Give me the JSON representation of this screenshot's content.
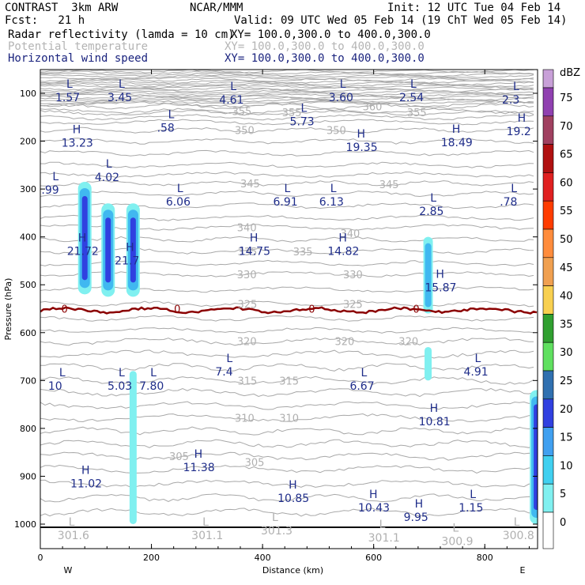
{
  "header": {
    "model": "CONTRAST  3km ARW",
    "center": "NCAR/MMM",
    "init": "Init: 12 UTC Tue 04 Feb 14",
    "fcst": "Fcst:   21 h",
    "valid": "Valid: 09 UTC Wed 05 Feb 14 (19 ChT Wed 05 Feb 14)",
    "field1_name": "Radar reflectivity (lamda = 10 cm)",
    "field1_xy": "XY= 100.0,300.0 to 400.0,300.0",
    "field2_name": "Potential temperature",
    "field2_xy": "XY= 100.0,300.0 to 400.0,300.0",
    "field3_name": "Horizontal wind speed",
    "field3_xy": "XY= 100.0,300.0 to 400.0,300.0"
  },
  "chart_data": {
    "type": "contour-cross-section",
    "xlabel": "Distance (km)",
    "ylabel": "Pressure (hPa)",
    "xlim": [
      0,
      895
    ],
    "ylim": [
      1050,
      55
    ],
    "x_ticks": [
      "0",
      "200",
      "400",
      "600",
      "800"
    ],
    "x_tick_values": [
      0,
      200,
      400,
      600,
      800
    ],
    "y_ticks": [
      "100",
      "200",
      "300",
      "400",
      "500",
      "600",
      "700",
      "800",
      "900",
      "1000"
    ],
    "y_tick_values": [
      100,
      200,
      300,
      400,
      500,
      600,
      700,
      800,
      900,
      1000
    ],
    "left_end_label": "W",
    "right_end_label": "E",
    "colorbar": {
      "units": "dBZ",
      "levels": [
        "75",
        "70",
        "65",
        "60",
        "55",
        "50",
        "45",
        "40",
        "35",
        "30",
        "25",
        "20",
        "15",
        "10",
        "5",
        "0"
      ],
      "colors": [
        "#c8a0d8",
        "#9040b0",
        "#a04060",
        "#b01010",
        "#e02020",
        "#ff3c00",
        "#ff8c3c",
        "#f0a050",
        "#f8d050",
        "#30a030",
        "#60e060",
        "#3070b0",
        "#3040e0",
        "#40a0f0",
        "#40d0f0",
        "#80f0f0",
        "#ffffff"
      ]
    },
    "theta_isentropes_K": [
      {
        "label": "360",
        "p": 127,
        "x": 580
      },
      {
        "label": "355",
        "p": 137,
        "x": 345
      },
      {
        "label": "355",
        "p": 140,
        "x": 435
      },
      {
        "label": "355",
        "p": 140,
        "x": 660
      },
      {
        "label": "350",
        "p": 177,
        "x": 350
      },
      {
        "label": "350",
        "p": 177,
        "x": 515
      },
      {
        "label": "345",
        "p": 288,
        "x": 360
      },
      {
        "label": "345",
        "p": 290,
        "x": 610
      },
      {
        "label": "340",
        "p": 380,
        "x": 354
      },
      {
        "label": "340",
        "p": 392,
        "x": 540
      },
      {
        "label": "335",
        "p": 430,
        "x": 355
      },
      {
        "label": "335",
        "p": 430,
        "x": 455
      },
      {
        "label": "330",
        "p": 478,
        "x": 354
      },
      {
        "label": "330",
        "p": 478,
        "x": 545
      },
      {
        "label": "325",
        "p": 540,
        "x": 355
      },
      {
        "label": "325",
        "p": 540,
        "x": 545
      },
      {
        "label": "320",
        "p": 618,
        "x": 354
      },
      {
        "label": "320",
        "p": 618,
        "x": 530
      },
      {
        "label": "320",
        "p": 618,
        "x": 645
      },
      {
        "label": "315",
        "p": 700,
        "x": 355
      },
      {
        "label": "315",
        "p": 700,
        "x": 430
      },
      {
        "label": "310",
        "p": 778,
        "x": 350
      },
      {
        "label": "310",
        "p": 778,
        "x": 430
      },
      {
        "label": "305",
        "p": 858,
        "x": 232
      },
      {
        "label": "305",
        "p": 870,
        "x": 368
      }
    ],
    "zero_isoline_label": "0",
    "zero_isoline_label_positions_km": [
      42,
      245,
      487,
      675
    ],
    "wind_highs_lows": [
      {
        "type": "L",
        "value": "1.57",
        "x": 27,
        "p": 95
      },
      {
        "type": "L",
        "value": "3.45",
        "x": 121,
        "p": 95
      },
      {
        "type": "L",
        "value": "4.61",
        "x": 322,
        "p": 100
      },
      {
        "type": "L",
        "value": "3.60",
        "x": 519,
        "p": 95
      },
      {
        "type": "L",
        "value": "2.54",
        "x": 646,
        "p": 95
      },
      {
        "type": "L",
        "value": "2.3",
        "x": 831,
        "p": 100
      },
      {
        "type": "L",
        "value": ".58",
        "x": 210,
        "p": 159
      },
      {
        "type": "L",
        "value": "5.73",
        "x": 449,
        "p": 145
      },
      {
        "type": "H",
        "value": "13.23",
        "x": 38,
        "p": 190
      },
      {
        "type": "H",
        "value": "19.35",
        "x": 550,
        "p": 199
      },
      {
        "type": "H",
        "value": "18.49",
        "x": 721,
        "p": 189
      },
      {
        "type": "H",
        "value": "19.2",
        "x": 839,
        "p": 166
      },
      {
        "type": "L",
        "value": ".99",
        "x": 2,
        "p": 288
      },
      {
        "type": "L",
        "value": "4.02",
        "x": 98,
        "p": 262
      },
      {
        "type": "L",
        "value": "6.06",
        "x": 226,
        "p": 313
      },
      {
        "type": "L",
        "value": "6.91",
        "x": 419,
        "p": 313
      },
      {
        "type": "L",
        "value": "6.13",
        "x": 502,
        "p": 313
      },
      {
        "type": "L",
        "value": "2.85",
        "x": 682,
        "p": 333
      },
      {
        "type": "L",
        "value": ".78",
        "x": 827,
        "p": 313
      },
      {
        "type": "H",
        "value": "21.72",
        "x": 48,
        "p": 416
      },
      {
        "type": "H",
        "value": "21.7",
        "x": 134,
        "p": 436
      },
      {
        "type": "H",
        "value": "14.75",
        "x": 357,
        "p": 416
      },
      {
        "type": "H",
        "value": "14.82",
        "x": 517,
        "p": 416
      },
      {
        "type": "H",
        "value": "15.87",
        "x": 692,
        "p": 492
      },
      {
        "type": "L",
        "value": "7.4",
        "x": 315,
        "p": 668
      },
      {
        "type": "L",
        "value": "4.91",
        "x": 762,
        "p": 668
      },
      {
        "type": "L",
        "value": "10",
        "x": 14,
        "p": 698
      },
      {
        "type": "L",
        "value": "5.03",
        "x": 121,
        "p": 698
      },
      {
        "type": "L",
        "value": "7.80",
        "x": 178,
        "p": 698
      },
      {
        "type": "L",
        "value": "6.67",
        "x": 557,
        "p": 698
      },
      {
        "type": "H",
        "value": "10.81",
        "x": 681,
        "p": 772
      },
      {
        "type": "H",
        "value": "11.38",
        "x": 257,
        "p": 868
      },
      {
        "type": "H",
        "value": "11.02",
        "x": 54,
        "p": 902
      },
      {
        "type": "H",
        "value": "10.85",
        "x": 427,
        "p": 932
      },
      {
        "type": "H",
        "value": "10.43",
        "x": 572,
        "p": 952
      },
      {
        "type": "H",
        "value": "9.95",
        "x": 654,
        "p": 972
      },
      {
        "type": "L",
        "value": "1.15",
        "x": 753,
        "p": 952
      }
    ],
    "theta_highs_lows": [
      {
        "type": "L",
        "value": "301.6",
        "x": 31,
        "p": 1010
      },
      {
        "type": "L",
        "value": "301.1",
        "x": 272,
        "p": 1010
      },
      {
        "type": "L",
        "value": "301.3",
        "x": 397,
        "p": 1000
      },
      {
        "type": "L",
        "value": "301.1",
        "x": 590,
        "p": 1015
      },
      {
        "type": "L",
        "value": "300.9",
        "x": 722,
        "p": 1022
      },
      {
        "type": "L",
        "value": "300.8",
        "x": 832,
        "p": 1010
      }
    ],
    "reflectivity_cells": [
      {
        "x_km": 80,
        "p_top": 285,
        "p_bottom": 520,
        "max_dBZ": 15
      },
      {
        "x_km": 122,
        "p_top": 330,
        "p_bottom": 525,
        "max_dBZ": 15
      },
      {
        "x_km": 167,
        "p_top": 330,
        "p_bottom": 525,
        "max_dBZ": 15
      },
      {
        "x_km": 698,
        "p_top": 400,
        "p_bottom": 560,
        "max_dBZ": 10
      },
      {
        "x_km": 698,
        "p_top": 630,
        "p_bottom": 700,
        "max_dBZ": 5
      },
      {
        "x_km": 167,
        "p_top": 680,
        "p_bottom": 1000,
        "max_dBZ": 5
      },
      {
        "x_km": 893,
        "p_top": 720,
        "p_bottom": 1000,
        "max_dBZ": 20
      }
    ]
  }
}
